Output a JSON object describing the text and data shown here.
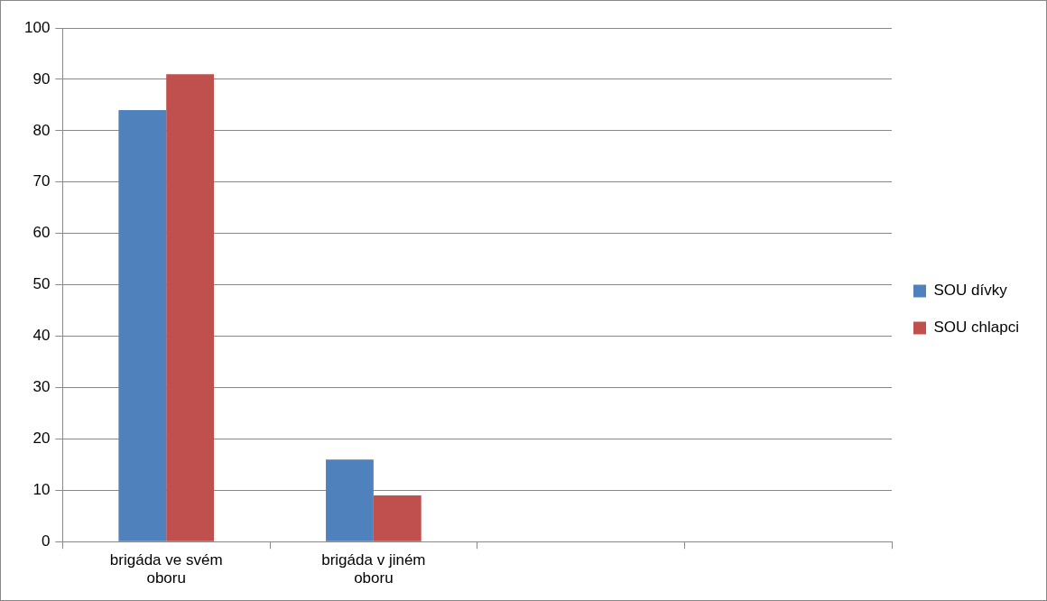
{
  "chart_data": {
    "type": "bar",
    "categories": [
      "brigáda ve svém oboru",
      "brigáda v jiném oboru",
      null,
      null
    ],
    "series": [
      {
        "name": "SOU dívky",
        "color": "#4f81bd",
        "values": [
          84,
          16,
          null,
          null
        ]
      },
      {
        "name": "SOU chlapci",
        "color": "#c0504d",
        "values": [
          91,
          9,
          null,
          null
        ]
      }
    ],
    "ylim": [
      0,
      100
    ],
    "yticks": [
      0,
      10,
      20,
      30,
      40,
      50,
      60,
      70,
      80,
      90,
      100
    ],
    "grid": "y",
    "legend": "right"
  }
}
